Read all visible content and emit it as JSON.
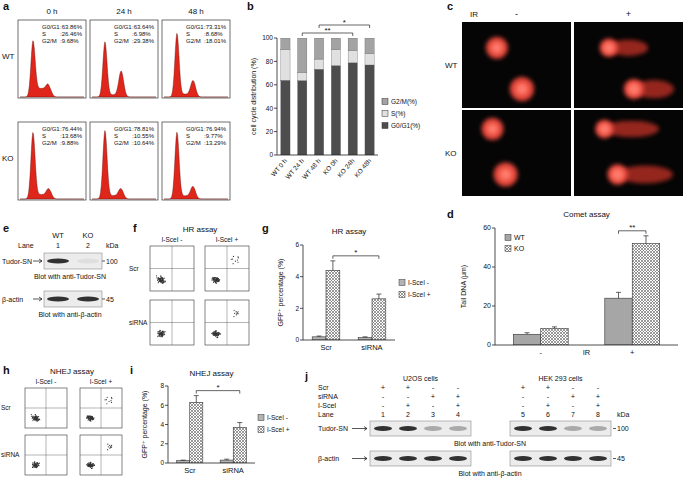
{
  "panel_labels": [
    "a",
    "b",
    "c",
    "d",
    "e",
    "f",
    "g",
    "h",
    "i",
    "j"
  ],
  "cell_cycle_profiles": {
    "timepoints": [
      "0 h",
      "24 h",
      "48 h"
    ],
    "phase_labels": [
      "G0/G1",
      "S",
      "G2/M"
    ],
    "rows": [
      {
        "name": "WT",
        "cells": [
          {
            "values": [
              63.86,
              26.46,
              9.68
            ],
            "value_labels": [
              ":63.86%",
              ":26.46%",
              ":9.68%"
            ]
          },
          {
            "values": [
              63.64,
              6.98,
              29.38
            ],
            "value_labels": [
              ":63.64%",
              ":6.98%",
              ":29.38%"
            ]
          },
          {
            "values": [
              73.31,
              8.68,
              18.01
            ],
            "value_labels": [
              ":73.31%",
              ":8.68%",
              ":18.01%"
            ]
          }
        ]
      },
      {
        "name": "KO",
        "cells": [
          {
            "values": [
              76.44,
              13.68,
              9.88
            ],
            "value_labels": [
              ":76.44%",
              ":13.68%",
              ":9.88%"
            ]
          },
          {
            "values": [
              78.81,
              10.55,
              10.64
            ],
            "value_labels": [
              ":78.81%",
              ":10.55%",
              ":10.64%"
            ]
          },
          {
            "values": [
              76.94,
              9.77,
              13.29
            ],
            "value_labels": [
              ":76.94%",
              ":9.77%",
              ":13.29%"
            ]
          }
        ]
      }
    ]
  },
  "chart_data": [
    {
      "type": "bar",
      "stacked": true,
      "ylabel": "cell cycle distribution (%)",
      "categories": [
        "WT 0 h",
        "WT 24 h",
        "WT 48 h",
        "KO 0h",
        "KO 24h",
        "KO 48h"
      ],
      "series": [
        {
          "name": "G0/G1(%)",
          "color": "#4d4d4d",
          "values": [
            63.86,
            63.64,
            73.31,
            76.44,
            78.81,
            76.94
          ]
        },
        {
          "name": "S(%)",
          "color": "#e0e0e0",
          "values": [
            26.46,
            6.98,
            8.68,
            13.68,
            10.55,
            9.77
          ]
        },
        {
          "name": "G2/M(%)",
          "color": "#a3a3a3",
          "values": [
            9.68,
            29.38,
            18.01,
            9.88,
            10.64,
            13.29
          ]
        }
      ],
      "ylim": [
        0,
        100
      ],
      "yticks": [
        0,
        20,
        40,
        60,
        80,
        100
      ],
      "legend": "right",
      "annotations": [
        {
          "text": "**",
          "categories": [
            "WT 24 h",
            "KO 24h"
          ]
        },
        {
          "text": "*",
          "categories": [
            "WT 48 h",
            "KO 48h"
          ]
        }
      ]
    },
    {
      "type": "bar",
      "title": "Comet assay",
      "ylabel": "Tail DNA (μm)",
      "xlabel": "IR",
      "categories": [
        "-",
        "+"
      ],
      "series": [
        {
          "name": "WT",
          "color": "#a6a6a6",
          "values": [
            5.5,
            24
          ],
          "errors": [
            0.8,
            3
          ]
        },
        {
          "name": "KO",
          "color": "#6f6f6f",
          "line_style": "crosshatch",
          "values": [
            8.5,
            52
          ],
          "errors": [
            0.8,
            4
          ]
        }
      ],
      "ylim": [
        0,
        60
      ],
      "yticks": [
        0,
        20,
        40,
        60
      ],
      "legend": "upper left",
      "annotations": [
        {
          "text": "**",
          "series": [
            "WT",
            "KO"
          ],
          "categories": [
            "+",
            "+"
          ]
        }
      ]
    },
    {
      "type": "bar",
      "title": "HR assay",
      "ylabel": "GFP⁺ percentage (%)",
      "categories": [
        "Scr",
        "siRNA"
      ],
      "series": [
        {
          "name": "I-SceI -",
          "color": "#b3b3b3",
          "values": [
            0.2,
            0.15
          ],
          "errors": [
            0.05,
            0.05
          ]
        },
        {
          "name": "I-SceI +",
          "color": "#6f6f6f",
          "line_style": "crosshatch",
          "values": [
            4.4,
            2.6
          ],
          "errors": [
            0.6,
            0.3
          ]
        }
      ],
      "ylim": [
        0,
        6
      ],
      "yticks": [
        0,
        2,
        4,
        6
      ],
      "legend": "right",
      "annotations": [
        {
          "text": "*",
          "series": [
            "I-SceI +",
            "I-SceI +"
          ],
          "categories": [
            "Scr",
            "siRNA"
          ]
        }
      ]
    },
    {
      "type": "bar",
      "title": "NHEJ assay",
      "ylabel": "GFP⁺ percentage (%)",
      "categories": [
        "Scr",
        "siRNA"
      ],
      "series": [
        {
          "name": "I-SceI -",
          "color": "#b3b3b3",
          "values": [
            0.25,
            0.3
          ],
          "errors": [
            0.05,
            0.1
          ]
        },
        {
          "name": "I-SceI +",
          "color": "#6f6f6f",
          "line_style": "crosshatch",
          "values": [
            6.3,
            3.7
          ],
          "errors": [
            0.7,
            0.5
          ]
        }
      ],
      "ylim": [
        0,
        8
      ],
      "yticks": [
        0,
        2,
        4,
        6,
        8
      ],
      "legend": "right",
      "annotations": [
        {
          "text": "*",
          "series": [
            "I-SceI +",
            "I-SceI +"
          ],
          "categories": [
            "Scr",
            "siRNA"
          ]
        }
      ]
    }
  ],
  "comet_images": {
    "treatment": "IR",
    "conditions": [
      "-",
      "+"
    ],
    "rows": [
      "WT",
      "KO"
    ]
  },
  "western_blot_e": {
    "columns": [
      "WT",
      "KO"
    ],
    "lane_label": "Lane",
    "lanes": [
      1,
      2
    ],
    "unit": "kDa",
    "blots": [
      {
        "protein": "Tudor-SN",
        "marker": 100,
        "caption": "Blot with anti-Tudor-SN"
      },
      {
        "protein": "β-actin",
        "marker": 45,
        "caption": "Blot with anti-β-actin"
      }
    ]
  },
  "hr_flow": {
    "title": "HR assay",
    "columns": [
      "I-SceI -",
      "I-SceI +"
    ],
    "rows": [
      "Scr",
      "siRNA"
    ]
  },
  "nhej_flow": {
    "title": "NHEJ assay",
    "columns": [
      "I-SceI -",
      "I-SceI +"
    ],
    "rows": [
      "Scr",
      "siRNA"
    ]
  },
  "western_blot_j": {
    "groups": [
      {
        "name": "U2OS cells",
        "lanes": [
          1,
          2,
          3,
          4
        ]
      },
      {
        "name": "HEK 293 cells",
        "lanes": [
          5,
          6,
          7,
          8
        ]
      }
    ],
    "conditions": [
      {
        "name": "Scr",
        "states": [
          "+",
          "+",
          "-",
          "-",
          "+",
          "+",
          "-",
          "-"
        ]
      },
      {
        "name": "siRNA",
        "states": [
          "-",
          "-",
          "+",
          "+",
          "-",
          "-",
          "+",
          "+"
        ]
      },
      {
        "name": "I-SceI",
        "states": [
          "-",
          "+",
          "-",
          "+",
          "-",
          "+",
          "-",
          "+"
        ]
      }
    ],
    "lane_label": "Lane",
    "unit": "kDa",
    "blots": [
      {
        "protein": "Tudor-SN",
        "marker": 100,
        "caption": "Blot with anti-Tudor-SN"
      },
      {
        "protein": "β-actin",
        "marker": 45,
        "caption": "Blot with anti-β-actin"
      }
    ]
  }
}
